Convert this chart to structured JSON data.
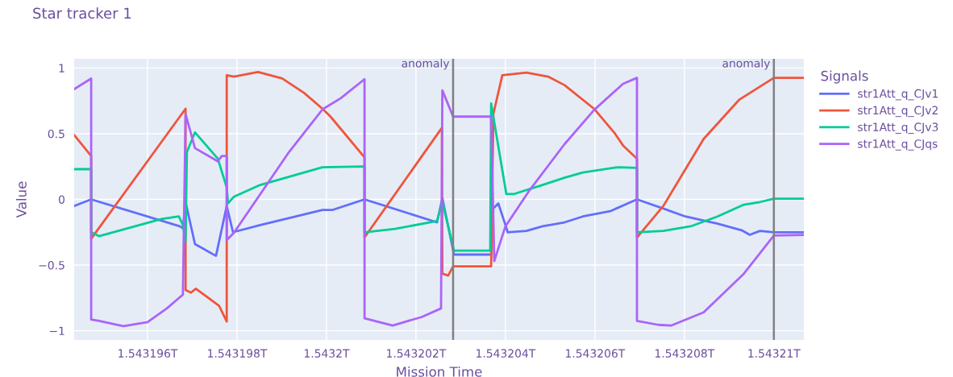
{
  "chart_data": {
    "type": "line",
    "title": "Star tracker 1",
    "xlabel": "Mission Time",
    "ylabel": "Value",
    "legend_title": "Signals",
    "legend": "right",
    "grid": true,
    "marker": "none",
    "line_style": "solid",
    "xlim": [
      1543194360000,
      1543210670000
    ],
    "xticks": [
      {
        "value": 1543196000000,
        "label": "1.543196T"
      },
      {
        "value": 1543198000000,
        "label": "1.543198T"
      },
      {
        "value": 1543200000000,
        "label": "1.5432T"
      },
      {
        "value": 1543202000000,
        "label": "1.543202T"
      },
      {
        "value": 1543204000000,
        "label": "1.543204T"
      },
      {
        "value": 1543206000000,
        "label": "1.543206T"
      },
      {
        "value": 1543208000000,
        "label": "1.543208T"
      },
      {
        "value": 1543210000000,
        "label": "1.54321T"
      }
    ],
    "ylim": [
      -1.07,
      1.07
    ],
    "yticks": [
      {
        "value": -1,
        "label": "−1"
      },
      {
        "value": -0.5,
        "label": "−0.5"
      },
      0,
      0.5,
      1
    ],
    "ref_lines": [
      {
        "axis": "x",
        "value": 1543202830000,
        "label": "anomaly",
        "color": "#808080"
      },
      {
        "axis": "x",
        "value": 1543210000000,
        "label": "anomaly",
        "color": "#808080"
      }
    ],
    "series": [
      {
        "name": "str1Att_q_CJv1",
        "color": "#636efa",
        "x": [
          1543194360000,
          1543194740000,
          1543196720000,
          1543196790000,
          1543196850000,
          1543197060000,
          1543197530000,
          1543197770000,
          1543197910000,
          1543198520000,
          1543199910000,
          1543200140000,
          1543200850000,
          1543202470000,
          1543202590000,
          1543202850000,
          1543203680000,
          1543203730000,
          1543203840000,
          1543204000000,
          1543204050000,
          1543204470000,
          1543204830000,
          1543205320000,
          1543205730000,
          1543206340000,
          1543206940000,
          1543207530000,
          1543208020000,
          1543208740000,
          1543209280000,
          1543209460000,
          1543209690000,
          1543210000000,
          1543210670000
        ],
        "values": [
          -0.05,
          0,
          -0.205,
          -0.22,
          -0.02,
          -0.34,
          -0.43,
          -0.05,
          -0.25,
          -0.195,
          -0.08,
          -0.08,
          0,
          -0.175,
          0.01,
          -0.42,
          -0.42,
          -0.07,
          -0.03,
          -0.195,
          -0.25,
          -0.24,
          -0.205,
          -0.175,
          -0.13,
          -0.09,
          0,
          -0.07,
          -0.13,
          -0.185,
          -0.235,
          -0.27,
          -0.24,
          -0.25,
          -0.25
        ]
      },
      {
        "name": "str1Att_q_CJv2",
        "color": "#ef553b",
        "x": [
          1543194360000,
          1543194740000,
          1543194740000,
          1543196850000,
          1543196850000,
          1543196970000,
          1543197080000,
          1543197440000,
          1543197600000,
          1543197770000,
          1543197770000,
          1543197930000,
          1543198470000,
          1543199010000,
          1543199500000,
          1543199910000,
          1543200090000,
          1543200850000,
          1543200850000,
          1543202580000,
          1543202590000,
          1543202720000,
          1543202830000,
          1543203680000,
          1543203730000,
          1543203930000,
          1543204470000,
          1543204950000,
          1543205320000,
          1543205980000,
          1543206450000,
          1543206630000,
          1543206940000,
          1543206940000,
          1543207530000,
          1543208430000,
          1543209230000,
          1543210000000,
          1543210670000
        ],
        "values": [
          0.49,
          0.33,
          -0.3,
          0.69,
          -0.69,
          -0.71,
          -0.68,
          -0.77,
          -0.81,
          -0.93,
          0.945,
          0.935,
          0.97,
          0.92,
          0.81,
          0.69,
          0.63,
          0.32,
          -0.29,
          0.545,
          -0.565,
          -0.58,
          -0.51,
          -0.51,
          0.65,
          0.945,
          0.965,
          0.935,
          0.87,
          0.69,
          0.5,
          0.41,
          0.31,
          -0.29,
          -0.05,
          0.46,
          0.76,
          0.925,
          0.925
        ]
      },
      {
        "name": "str1Att_q_CJv3",
        "color": "#00cc96",
        "x": [
          1543194360000,
          1543194740000,
          1543194740000,
          1543194920000,
          1543196310000,
          1543196700000,
          1543196790000,
          1543196850000,
          1543196880000,
          1543197060000,
          1543197570000,
          1543197770000,
          1543197800000,
          1543197930000,
          1543198520000,
          1543199910000,
          1543200850000,
          1543200850000,
          1543201530000,
          1543202470000,
          1543202590000,
          1543202850000,
          1543203660000,
          1543203680000,
          1543204020000,
          1543204180000,
          1543204830000,
          1543205320000,
          1543205730000,
          1543206520000,
          1543206940000,
          1543206940000,
          1543207530000,
          1543208140000,
          1543208740000,
          1543209330000,
          1543209690000,
          1543210000000,
          1543210670000
        ],
        "values": [
          0.23,
          0.23,
          -0.25,
          -0.28,
          -0.15,
          -0.13,
          -0.195,
          -0.32,
          0.36,
          0.51,
          0.31,
          0.09,
          -0.03,
          0.02,
          0.11,
          0.245,
          0.25,
          -0.25,
          -0.225,
          -0.165,
          -0.02,
          -0.39,
          -0.39,
          0.73,
          0.04,
          0.04,
          0.11,
          0.165,
          0.205,
          0.245,
          0.24,
          -0.25,
          -0.24,
          -0.205,
          -0.13,
          -0.04,
          -0.02,
          0.005,
          0.005
        ]
      },
      {
        "name": "str1Att_q_CJqs",
        "color": "#ab63fa",
        "x": [
          1543194360000,
          1543194740000,
          1543194740000,
          1543194920000,
          1543195460000,
          1543196000000,
          1543196430000,
          1543196790000,
          1543196850000,
          1543197060000,
          1543197570000,
          1543197660000,
          1543197770000,
          1543197770000,
          1543197930000,
          1543198520000,
          1543199140000,
          1543199910000,
          1543200320000,
          1543200850000,
          1543200850000,
          1543201480000,
          1543202130000,
          1543202560000,
          1543202590000,
          1543202830000,
          1543203680000,
          1543203750000,
          1543204000000,
          1543204540000,
          1543205320000,
          1543205980000,
          1543206630000,
          1543206940000,
          1543206940000,
          1543207420000,
          1543207710000,
          1543208430000,
          1543209330000,
          1543210000000,
          1543210670000
        ],
        "values": [
          0.84,
          0.92,
          -0.915,
          -0.925,
          -0.965,
          -0.935,
          -0.83,
          -0.725,
          0.65,
          0.39,
          0.29,
          0.33,
          0.33,
          -0.31,
          -0.255,
          0.04,
          0.35,
          0.685,
          0.77,
          0.915,
          -0.905,
          -0.96,
          -0.895,
          -0.83,
          0.83,
          0.63,
          0.63,
          -0.47,
          -0.205,
          0.07,
          0.42,
          0.68,
          0.88,
          0.925,
          -0.925,
          -0.955,
          -0.96,
          -0.86,
          -0.565,
          -0.275,
          -0.27
        ]
      }
    ]
  }
}
